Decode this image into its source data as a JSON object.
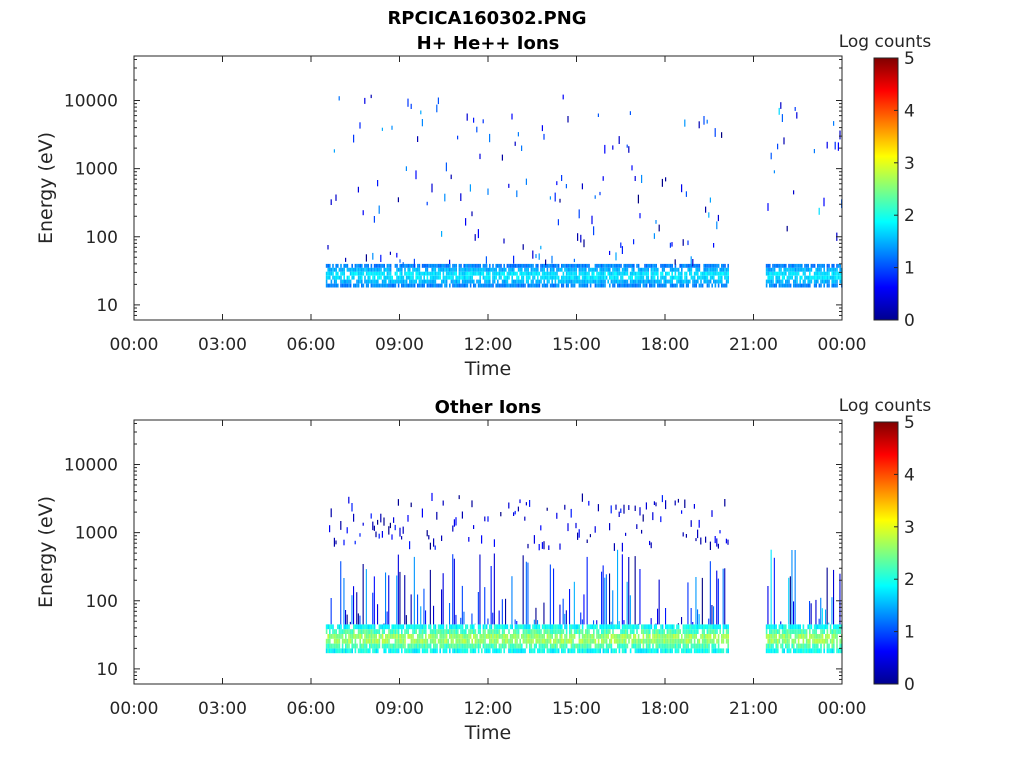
{
  "figure": {
    "title_line1": "RPCICA160302.PNG"
  },
  "colors": {
    "axis": "#262626",
    "colormap": "jet",
    "background": "#ffffff"
  },
  "chart_data": [
    {
      "type": "heatmap",
      "title": "H+ He++ Ions",
      "xlabel": "Time",
      "ylabel": "Energy (eV)",
      "xlim": [
        "00:00",
        "24:00"
      ],
      "ylim": [
        6,
        45000
      ],
      "yscale": "log",
      "x_tick_labels": [
        "00:00",
        "03:00",
        "06:00",
        "09:00",
        "12:00",
        "15:00",
        "18:00",
        "21:00",
        "00:00"
      ],
      "y_tick_labels": [
        "10",
        "100",
        "1000",
        "10000"
      ],
      "colorbar": {
        "label": "Log counts",
        "min": 0,
        "max": 5,
        "tick_labels": [
          "0",
          "1",
          "2",
          "3",
          "4",
          "5"
        ]
      },
      "grid": false,
      "data_gaps": [
        [
          "00:00",
          "06:30"
        ],
        [
          "20:10",
          "21:25"
        ]
      ],
      "bands": [
        {
          "time_start": "06:30",
          "time_end": "20:10",
          "energy_min": 18,
          "energy_max": 40,
          "log_counts": [
            1.0,
            2.0
          ],
          "kind": "dense band"
        },
        {
          "time_start": "21:25",
          "time_end": "24:00",
          "energy_min": 18,
          "energy_max": 40,
          "log_counts": [
            1.0,
            2.0
          ],
          "kind": "dense band"
        },
        {
          "time_start": "06:30",
          "time_end": "20:10",
          "energy_min": 40,
          "energy_max": 12000,
          "log_counts": [
            0.0,
            1.5
          ],
          "kind": "sparse scatter"
        },
        {
          "time_start": "21:25",
          "time_end": "24:00",
          "energy_min": 40,
          "energy_max": 12000,
          "log_counts": [
            0.0,
            1.8
          ],
          "kind": "sparse scatter"
        }
      ]
    },
    {
      "type": "heatmap",
      "title": "Other Ions",
      "xlabel": "Time",
      "ylabel": "Energy (eV)",
      "xlim": [
        "00:00",
        "24:00"
      ],
      "ylim": [
        6,
        45000
      ],
      "yscale": "log",
      "x_tick_labels": [
        "00:00",
        "03:00",
        "06:00",
        "09:00",
        "12:00",
        "15:00",
        "18:00",
        "21:00",
        "00:00"
      ],
      "y_tick_labels": [
        "10",
        "100",
        "1000",
        "10000"
      ],
      "colorbar": {
        "label": "Log counts",
        "min": 0,
        "max": 5,
        "tick_labels": [
          "0",
          "1",
          "2",
          "3",
          "4",
          "5"
        ]
      },
      "grid": false,
      "data_gaps": [
        [
          "00:00",
          "06:30"
        ],
        [
          "20:10",
          "21:25"
        ]
      ],
      "bands": [
        {
          "time_start": "06:30",
          "time_end": "20:10",
          "energy_min": 17,
          "energy_max": 45,
          "log_counts": [
            1.5,
            3.0
          ],
          "kind": "dense band"
        },
        {
          "time_start": "21:25",
          "time_end": "24:00",
          "energy_min": 17,
          "energy_max": 45,
          "log_counts": [
            1.5,
            3.0
          ],
          "kind": "dense band"
        },
        {
          "time_start": "06:30",
          "time_end": "20:10",
          "energy_min": 45,
          "energy_max": 600,
          "log_counts": [
            0.0,
            1.5
          ],
          "kind": "vertical streaks"
        },
        {
          "time_start": "21:25",
          "time_end": "24:00",
          "energy_min": 45,
          "energy_max": 600,
          "log_counts": [
            0.0,
            1.8
          ],
          "kind": "vertical streaks"
        },
        {
          "time_start": "06:30",
          "time_end": "20:10",
          "energy_min": 600,
          "energy_max": 3500,
          "log_counts": [
            0.0,
            0.8
          ],
          "kind": "sparse scatter"
        }
      ]
    }
  ]
}
